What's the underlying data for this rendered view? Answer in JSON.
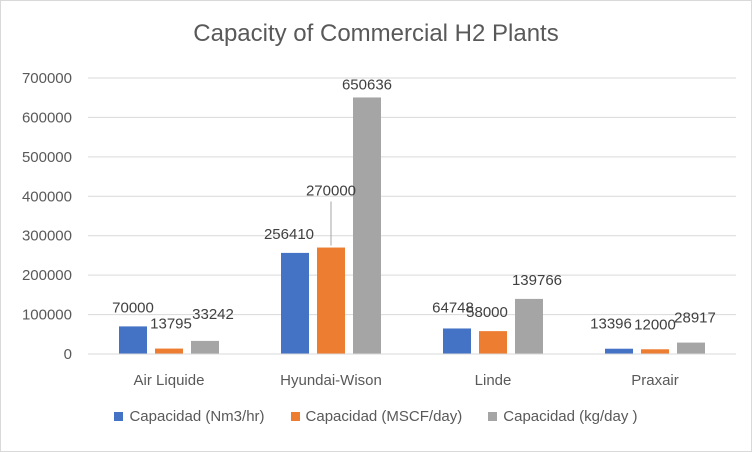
{
  "chart_data": {
    "type": "bar",
    "title": "Capacity of Commercial H2 Plants",
    "categories": [
      "Air Liquide",
      "Hyundai-Wison",
      "Linde",
      "Praxair"
    ],
    "series": [
      {
        "name": "Capacidad (Nm3/hr)",
        "values": [
          70000,
          256410,
          64748,
          13396
        ],
        "color": "#4472c4"
      },
      {
        "name": "Capacidad (MSCF/day)",
        "values": [
          13795,
          270000,
          58000,
          12000
        ],
        "color": "#ed7d31"
      },
      {
        "name": "Capacidad (kg/day )",
        "values": [
          33242,
          650636,
          139766,
          28917
        ],
        "color": "#a5a5a5"
      }
    ],
    "yticks": [
      "0",
      "100000",
      "200000",
      "300000",
      "400000",
      "500000",
      "600000",
      "700000"
    ],
    "ylim": [
      0,
      700000
    ],
    "grid": true,
    "legend_position": "bottom"
  }
}
